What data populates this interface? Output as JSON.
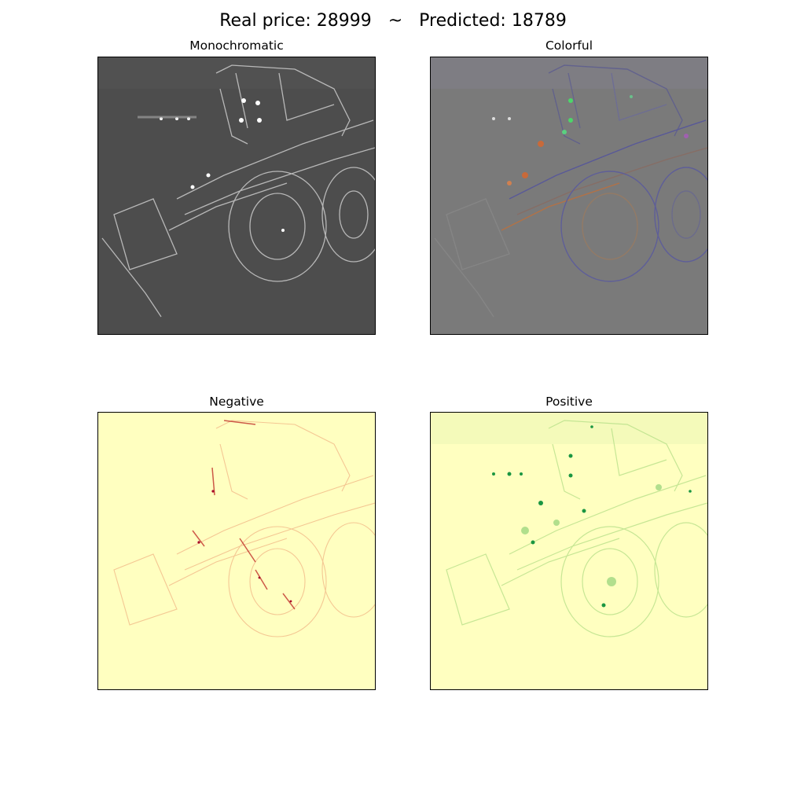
{
  "figure": {
    "title": "Real price: 28999   ~   Predicted: 18789"
  },
  "panels": [
    {
      "title": "Monochromatic",
      "background": "#4d4d4d",
      "stroke": "#e6e6e6",
      "accent": "#ffffff"
    },
    {
      "title": "Colorful",
      "background": "#7a7a7a",
      "stroke": "#5a5a8a",
      "accent": "#c86a3a",
      "highlight": "#4cd66a"
    },
    {
      "title": "Negative",
      "background": "#ffffc0",
      "stroke": "#e07a4a",
      "accent": "#a50026"
    },
    {
      "title": "Positive",
      "background": "#ffffc0",
      "stroke": "#9ad26a",
      "accent": "#1a9641"
    }
  ]
}
